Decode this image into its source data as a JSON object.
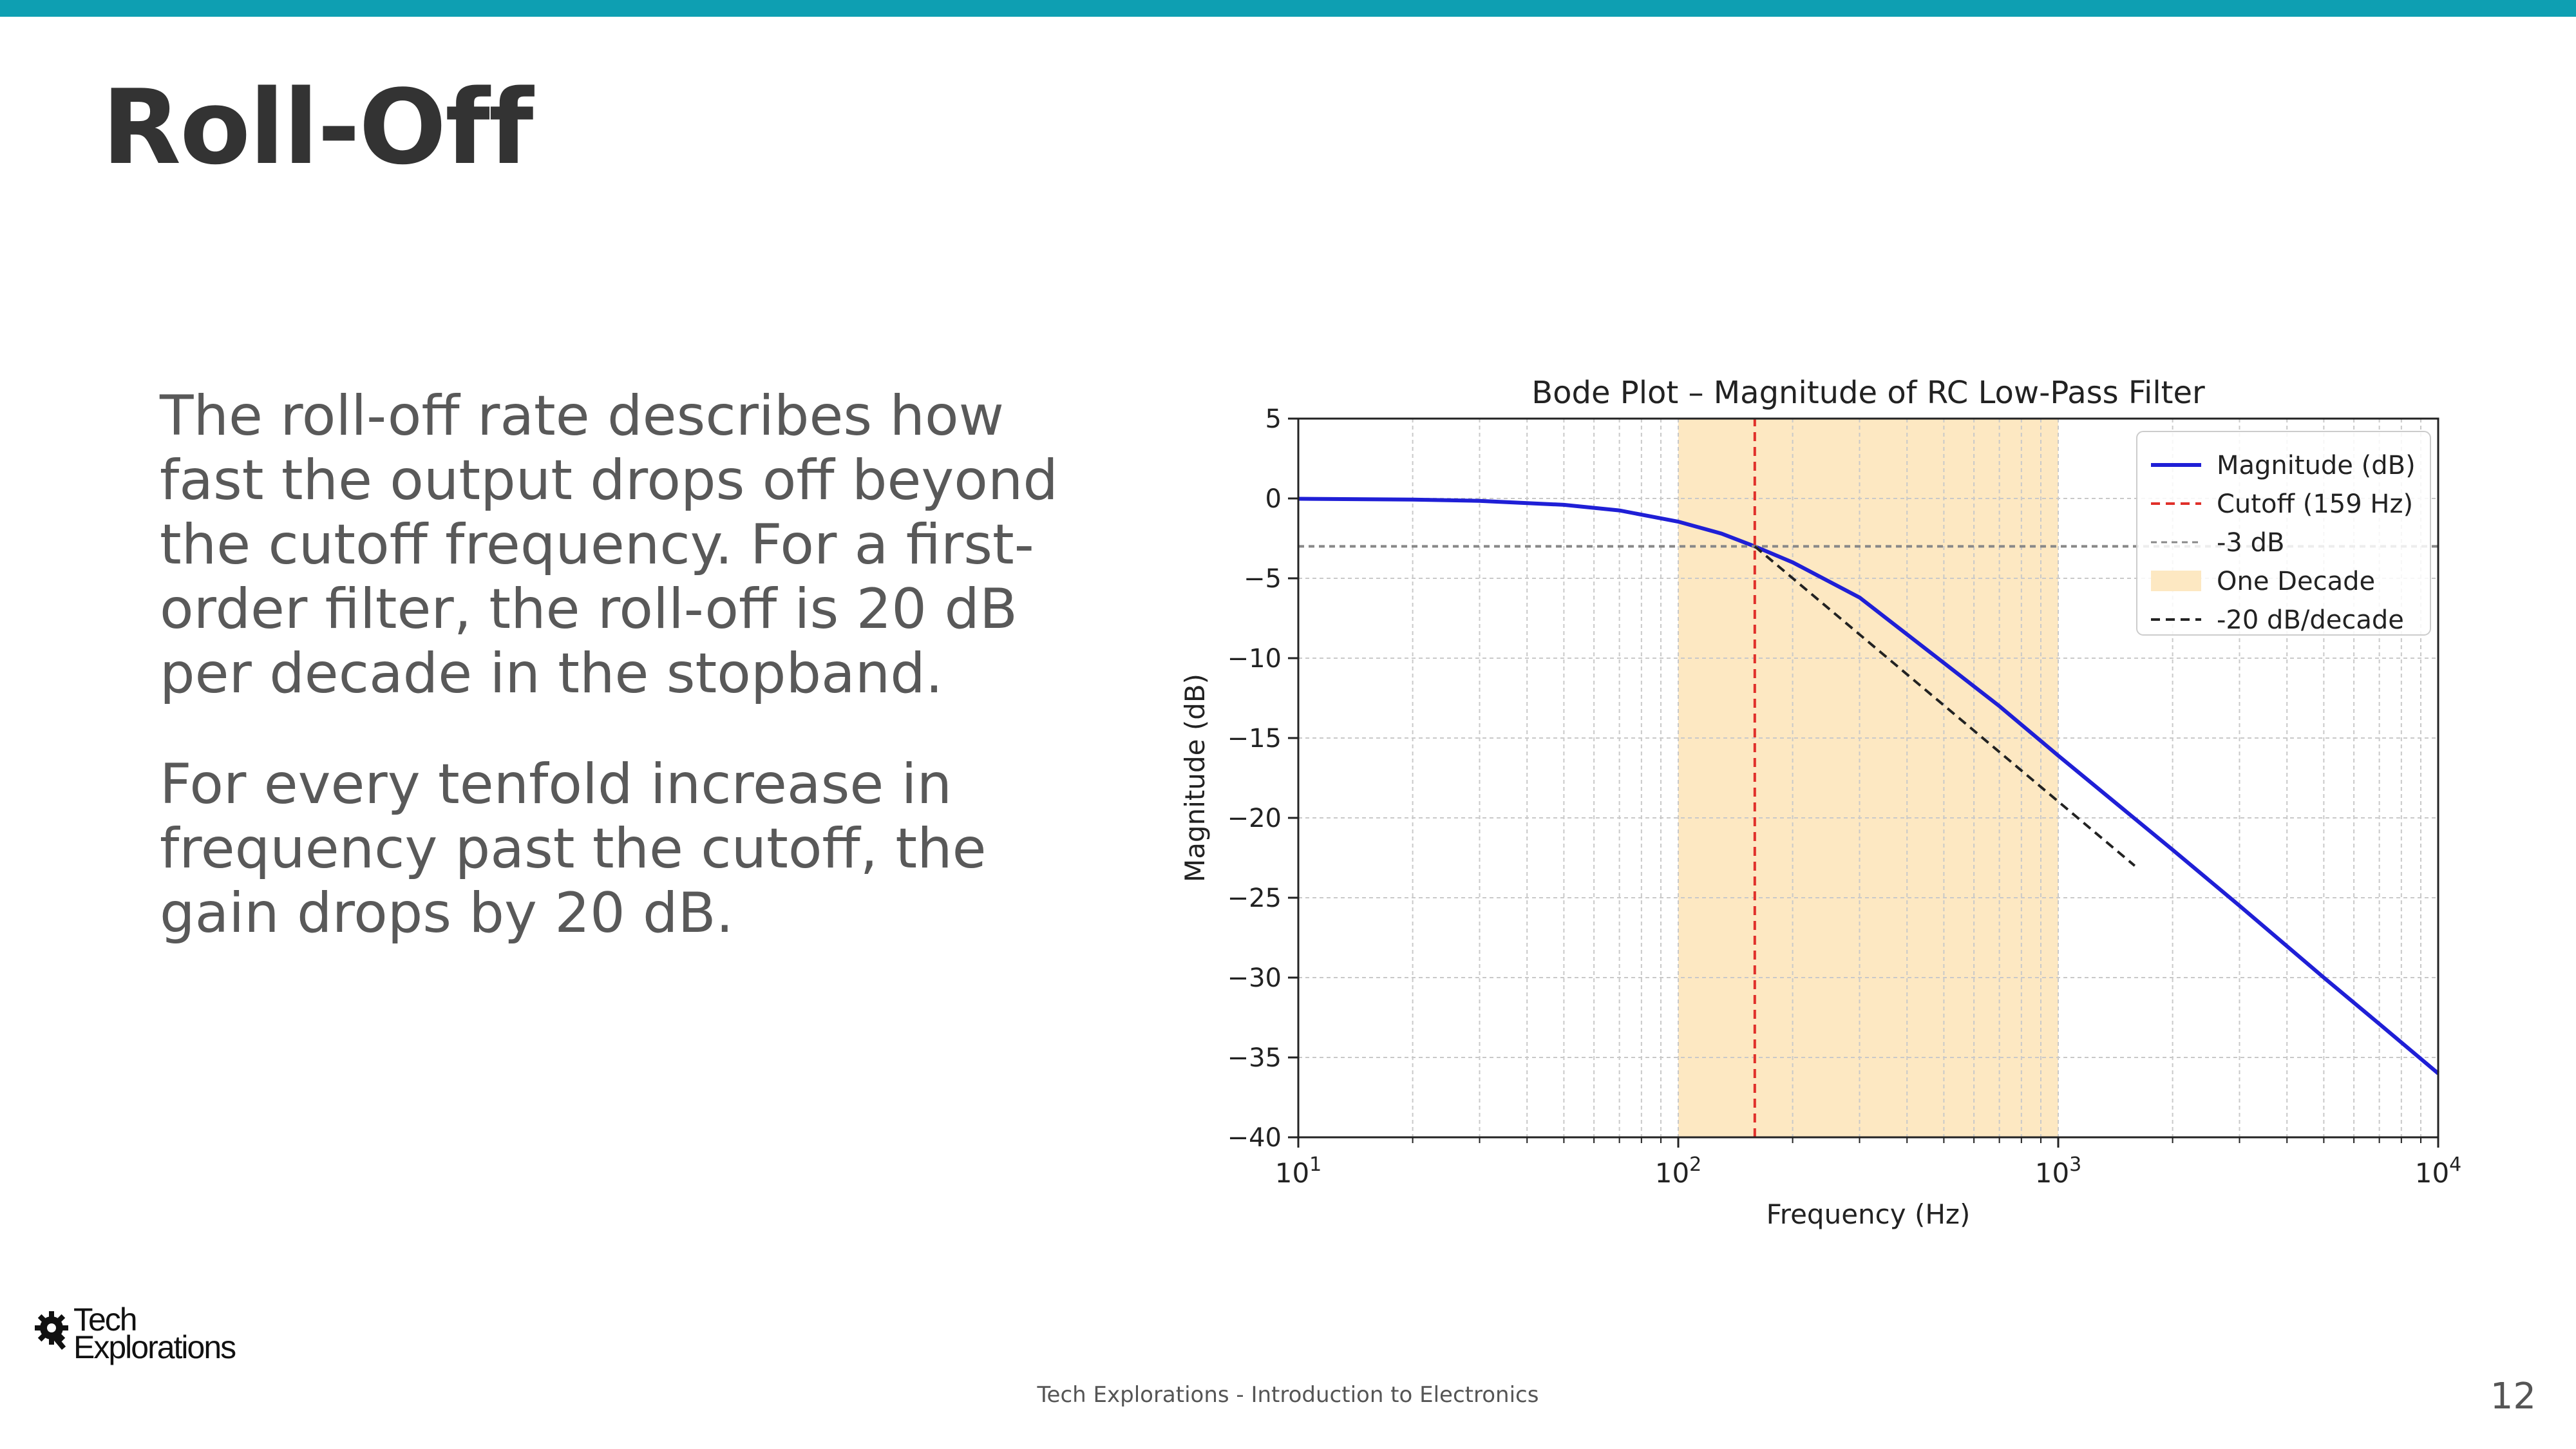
{
  "slide": {
    "title": "Roll-Off",
    "paragraphs": [
      "The roll-off rate describes how fast the output drops off beyond the cutoff frequency. For a first-order filter, the roll-off is 20 dB per decade in the stopband.",
      "For every tenfold increase in frequency past the cutoff, the gain drops by 20 dB."
    ],
    "footer": "Tech Explorations - Introduction to Electronics",
    "page_number": "12",
    "logo": {
      "line1": "Tech",
      "line2": "Explorations",
      "icon": "gear-magnifier-icon"
    },
    "accent_color": "#0e9fb2"
  },
  "chart_data": {
    "type": "line",
    "title": "Bode Plot – Magnitude of RC Low-Pass Filter",
    "xlabel": "Frequency (Hz)",
    "ylabel": "Magnitude (dB)",
    "x_scale": "log",
    "xlim": [
      10,
      10000
    ],
    "ylim": [
      -40,
      5
    ],
    "x_ticks": [
      10,
      100,
      1000,
      10000
    ],
    "y_ticks": [
      5,
      0,
      -5,
      -10,
      -15,
      -20,
      -25,
      -30,
      -35,
      -40
    ],
    "grid": true,
    "legend_position": "top-right",
    "series": [
      {
        "name": "Magnitude (dB)",
        "color": "#1f1fd6",
        "style": "solid",
        "x": [
          10,
          20,
          30,
          50,
          70,
          100,
          130,
          159,
          200,
          300,
          500,
          700,
          1000,
          2000,
          3000,
          5000,
          7000,
          10000
        ],
        "y": [
          -0.02,
          -0.07,
          -0.15,
          -0.4,
          -0.75,
          -1.45,
          -2.2,
          -3.0,
          -4.0,
          -6.2,
          -10.3,
          -13.0,
          -16.1,
          -22.0,
          -25.5,
          -30.0,
          -32.9,
          -36.0
        ]
      },
      {
        "name": "Cutoff (159 Hz)",
        "color": "#e0302a",
        "style": "dashed",
        "x": [
          159,
          159
        ],
        "y": [
          -40,
          5
        ]
      },
      {
        "name": "-3 dB",
        "color": "#888888",
        "style": "dashed",
        "x": [
          10,
          10000
        ],
        "y": [
          -3,
          -3
        ]
      },
      {
        "name": "-20 dB/decade",
        "color": "#222222",
        "style": "dashed",
        "x": [
          159,
          1590
        ],
        "y": [
          -3,
          -23
        ]
      }
    ],
    "shaded_regions": [
      {
        "name": "One Decade",
        "color": "#fde8c2",
        "x": [
          100,
          1000
        ]
      }
    ]
  }
}
